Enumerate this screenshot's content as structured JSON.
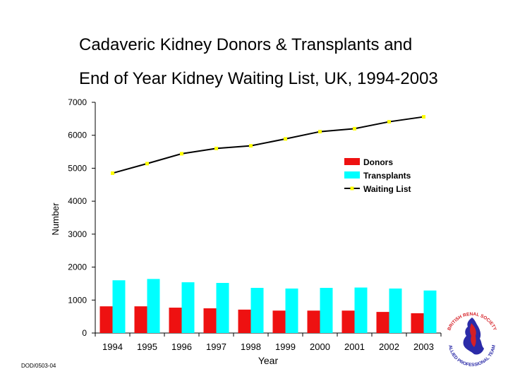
{
  "page": {
    "title_line1": "Cadaveric Kidney Donors & Transplants and",
    "title_line2": "End of Year Kidney Waiting List, UK, 1994-2003",
    "footer_code": "DOD/0503-04"
  },
  "logo": {
    "text": "BRITISH RENAL SOCIETY · ALLIED PROFESSIONAL TEAM"
  },
  "chart_data": {
    "type": "bar",
    "categories": [
      "1994",
      "1995",
      "1996",
      "1997",
      "1998",
      "1999",
      "2000",
      "2001",
      "2002",
      "2003"
    ],
    "series": [
      {
        "name": "Donors",
        "type": "bar",
        "color": "#ee1111",
        "values": [
          810,
          810,
          770,
          750,
          710,
          680,
          680,
          680,
          640,
          600
        ]
      },
      {
        "name": "Transplants",
        "type": "bar",
        "color": "#00ffff",
        "values": [
          1600,
          1640,
          1540,
          1520,
          1370,
          1350,
          1370,
          1380,
          1350,
          1290
        ]
      },
      {
        "name": "Waiting List",
        "type": "line",
        "color": "#000000",
        "marker_color": "#ffff00",
        "values": [
          4850,
          5140,
          5440,
          5600,
          5680,
          5890,
          6110,
          6200,
          6410,
          6560
        ]
      }
    ],
    "xlabel": "Year",
    "ylabel": "Number",
    "ylim": [
      0,
      7000
    ],
    "yticks": [
      "0",
      "1000",
      "2000",
      "3000",
      "4000",
      "5000",
      "6000",
      "7000"
    ],
    "legend_position": "right",
    "grid": false
  }
}
